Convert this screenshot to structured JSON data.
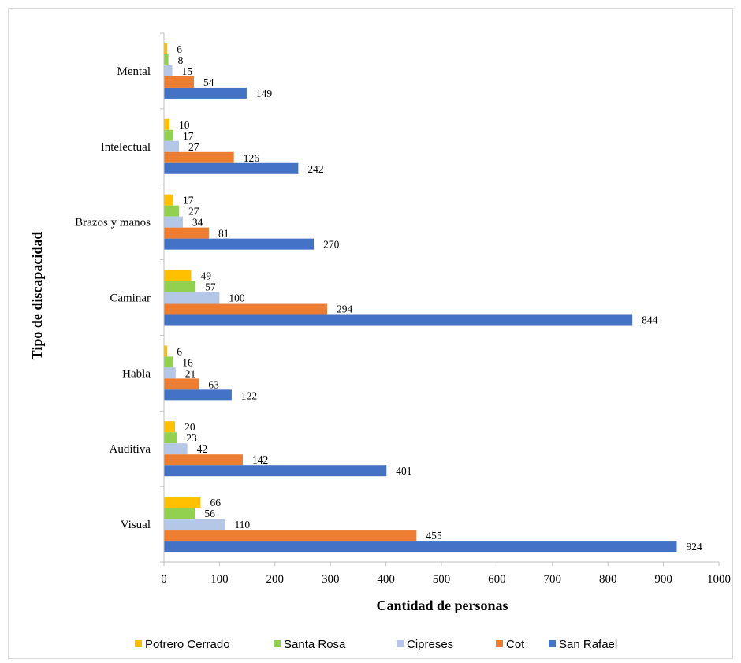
{
  "chart_data": {
    "type": "bar",
    "orientation": "horizontal",
    "title": "",
    "xlabel": "Cantidad de personas",
    "ylabel": "Tipo de discapacidad",
    "xlim": [
      0,
      1000
    ],
    "x_ticks": [
      0,
      100,
      200,
      300,
      400,
      500,
      600,
      700,
      800,
      900,
      1000
    ],
    "grid": false,
    "legend_position": "bottom",
    "categories": [
      "Mental",
      "Intelectual",
      "Brazos y manos",
      "Caminar",
      "Habla",
      "Auditiva",
      "Visual"
    ],
    "series": [
      {
        "name": "Potrero Cerrado",
        "color": "#FFC000",
        "values": [
          6,
          10,
          17,
          49,
          6,
          20,
          66
        ]
      },
      {
        "name": "Santa Rosa",
        "color": "#92D050",
        "values": [
          8,
          17,
          27,
          57,
          16,
          23,
          56
        ]
      },
      {
        "name": "Cipreses",
        "color": "#B4C7E7",
        "values": [
          15,
          27,
          34,
          100,
          21,
          42,
          110
        ]
      },
      {
        "name": "Cot",
        "color": "#ED7D31",
        "values": [
          54,
          126,
          81,
          294,
          63,
          142,
          455
        ]
      },
      {
        "name": "San Rafael",
        "color": "#4472C4",
        "values": [
          149,
          242,
          270,
          844,
          122,
          401,
          924
        ]
      }
    ]
  }
}
